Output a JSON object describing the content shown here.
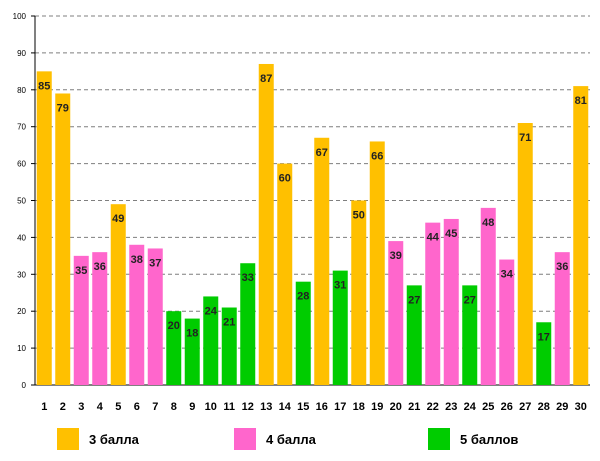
{
  "chart_data": {
    "type": "bar",
    "title": "",
    "xlabel": "",
    "ylabel": "",
    "ylim": [
      0,
      100
    ],
    "yticks": [
      0,
      10,
      20,
      30,
      40,
      50,
      60,
      70,
      80,
      90,
      100
    ],
    "grid": true,
    "categories": [
      "1",
      "2",
      "3",
      "4",
      "5",
      "6",
      "7",
      "8",
      "9",
      "10",
      "11",
      "12",
      "13",
      "14",
      "15",
      "16",
      "17",
      "18",
      "19",
      "20",
      "21",
      "22",
      "23",
      "24",
      "25",
      "26",
      "27",
      "28",
      "29",
      "30"
    ],
    "values": [
      85,
      79,
      35,
      36,
      49,
      38,
      37,
      20,
      18,
      24,
      21,
      33,
      87,
      60,
      28,
      67,
      31,
      50,
      66,
      39,
      27,
      44,
      45,
      27,
      48,
      34,
      71,
      17,
      36,
      81
    ],
    "groups": [
      "g3",
      "g3",
      "g4",
      "g4",
      "g3",
      "g4",
      "g4",
      "g5",
      "g5",
      "g5",
      "g5",
      "g5",
      "g3",
      "g3",
      "g5",
      "g3",
      "g5",
      "g3",
      "g3",
      "g4",
      "g5",
      "g4",
      "g4",
      "g5",
      "g4",
      "g4",
      "g3",
      "g5",
      "g4",
      "g3"
    ],
    "legend": [
      {
        "key": "g3",
        "label": "3 балла",
        "color": "#FFC000"
      },
      {
        "key": "g4",
        "label": "4 балла",
        "color": "#FF66CC"
      },
      {
        "key": "g5",
        "label": "5 баллов",
        "color": "#00CC00"
      }
    ],
    "legend_position": "bottom"
  }
}
